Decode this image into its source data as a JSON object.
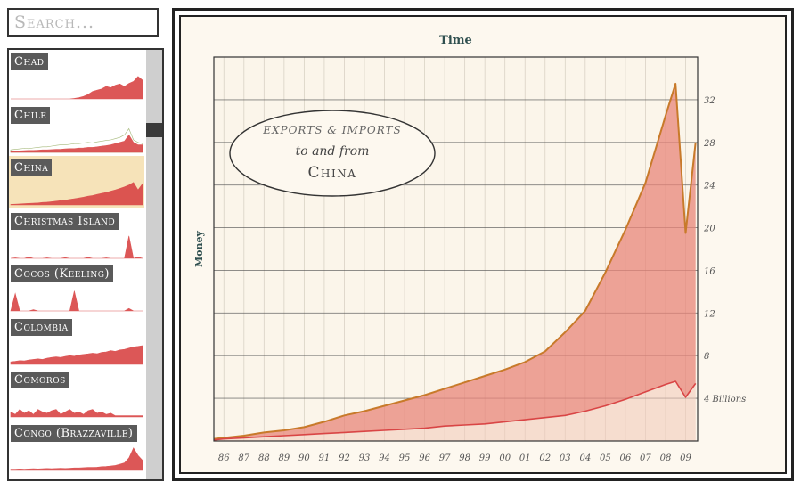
{
  "search": {
    "placeholder": "Search..."
  },
  "sidebar": {
    "items": [
      {
        "label": "Chad",
        "selected": false,
        "spark": [
          0,
          0,
          0,
          0,
          0,
          0,
          0,
          0,
          0,
          0,
          0,
          0,
          0,
          0,
          0.02,
          0.05,
          0.1,
          0.18,
          0.3,
          0.35,
          0.4,
          0.5,
          0.45,
          0.55,
          0.6,
          0.5,
          0.62,
          0.7,
          0.9,
          0.75
        ],
        "spark2": []
      },
      {
        "label": "Chile",
        "selected": false,
        "spark": [
          0.05,
          0.05,
          0.06,
          0.07,
          0.08,
          0.08,
          0.09,
          0.1,
          0.1,
          0.11,
          0.12,
          0.12,
          0.14,
          0.15,
          0.15,
          0.17,
          0.18,
          0.2,
          0.2,
          0.22,
          0.25,
          0.27,
          0.3,
          0.35,
          0.4,
          0.45,
          0.7,
          0.4,
          0.3,
          0.3
        ],
        "spark2": [
          0.1,
          0.12,
          0.14,
          0.16,
          0.15,
          0.18,
          0.2,
          0.22,
          0.22,
          0.25,
          0.28,
          0.3,
          0.3,
          0.32,
          0.35,
          0.35,
          0.38,
          0.4,
          0.38,
          0.42,
          0.45,
          0.48,
          0.5,
          0.55,
          0.6,
          0.7,
          0.95,
          0.5,
          0.4,
          0.35
        ]
      },
      {
        "label": "China",
        "selected": true,
        "spark": [
          0.02,
          0.03,
          0.04,
          0.05,
          0.06,
          0.07,
          0.08,
          0.1,
          0.11,
          0.13,
          0.15,
          0.17,
          0.19,
          0.22,
          0.25,
          0.28,
          0.31,
          0.35,
          0.38,
          0.42,
          0.46,
          0.5,
          0.55,
          0.6,
          0.66,
          0.72,
          0.8,
          0.9,
          0.6,
          0.85
        ],
        "spark2": []
      },
      {
        "label": "Christmas Island",
        "selected": false,
        "spark": [
          0,
          0.02,
          0,
          0,
          0.05,
          0,
          0,
          0,
          0.02,
          0,
          0,
          0,
          0.03,
          0,
          0,
          0,
          0,
          0.04,
          0,
          0,
          0,
          0.02,
          0,
          0,
          0,
          0,
          0.9,
          0,
          0.05,
          0
        ],
        "spark2": []
      },
      {
        "label": "Cocos (Keeling)",
        "selected": false,
        "spark": [
          0,
          0.7,
          0,
          0,
          0,
          0.05,
          0,
          0,
          0,
          0,
          0,
          0,
          0,
          0,
          0.8,
          0,
          0,
          0,
          0,
          0,
          0,
          0,
          0,
          0,
          0,
          0,
          0.1,
          0,
          0,
          0
        ],
        "spark2": []
      },
      {
        "label": "Colombia",
        "selected": false,
        "spark": [
          0.1,
          0.12,
          0.15,
          0.14,
          0.18,
          0.2,
          0.22,
          0.2,
          0.25,
          0.28,
          0.3,
          0.28,
          0.32,
          0.35,
          0.33,
          0.38,
          0.4,
          0.42,
          0.45,
          0.43,
          0.48,
          0.5,
          0.55,
          0.52,
          0.58,
          0.6,
          0.65,
          0.7,
          0.72,
          0.75
        ],
        "spark2": []
      },
      {
        "label": "Comoros",
        "selected": false,
        "spark": [
          0.2,
          0.1,
          0.3,
          0.15,
          0.25,
          0.1,
          0.3,
          0.2,
          0.15,
          0.25,
          0.3,
          0.1,
          0.2,
          0.3,
          0.15,
          0.2,
          0.1,
          0.25,
          0.3,
          0.15,
          0.2,
          0.1,
          0.15,
          0.05,
          0.05,
          0.05,
          0.05,
          0.05,
          0.05,
          0.05
        ],
        "spark2": []
      },
      {
        "label": "Congo (Brazzaville)",
        "selected": false,
        "spark": [
          0.05,
          0.05,
          0.06,
          0.05,
          0.06,
          0.07,
          0.06,
          0.07,
          0.08,
          0.07,
          0.08,
          0.09,
          0.08,
          0.09,
          0.1,
          0.1,
          0.11,
          0.12,
          0.12,
          0.13,
          0.15,
          0.16,
          0.18,
          0.2,
          0.25,
          0.3,
          0.5,
          0.9,
          0.6,
          0.4
        ],
        "spark2": []
      }
    ]
  },
  "chart_data": {
    "type": "area",
    "title": "Time",
    "xlabel": "Time",
    "ylabel": "Money",
    "legend_title": [
      "Exports & Imports",
      "to and from",
      "China"
    ],
    "y_tick_labels": [
      "4 Billions",
      "8",
      "12",
      "16",
      "20",
      "24",
      "28",
      "32"
    ],
    "x_tick_labels": [
      "86",
      "87",
      "88",
      "89",
      "90",
      "91",
      "92",
      "93",
      "94",
      "95",
      "96",
      "97",
      "98",
      "99",
      "00",
      "01",
      "02",
      "03",
      "04",
      "05",
      "06",
      "07",
      "08",
      "09"
    ],
    "ylim": [
      0,
      36
    ],
    "xlim": [
      1985.5,
      2009.6
    ],
    "series": [
      {
        "name": "Exports",
        "color": "#c87a2a",
        "x": [
          1985.5,
          1986,
          1987,
          1988,
          1989,
          1990,
          1991,
          1992,
          1993,
          1994,
          1995,
          1996,
          1997,
          1998,
          1999,
          2000,
          2001,
          2002,
          2003,
          2004,
          2005,
          2006,
          2007,
          2008,
          2008.5,
          2009,
          2009.5
        ],
        "y": [
          0.2,
          0.3,
          0.5,
          0.8,
          1.0,
          1.3,
          1.8,
          2.4,
          2.8,
          3.3,
          3.8,
          4.3,
          4.9,
          5.5,
          6.1,
          6.7,
          7.4,
          8.4,
          10.2,
          12.2,
          15.8,
          19.8,
          24.2,
          30.5,
          33.5,
          19.5,
          28.0
        ]
      },
      {
        "name": "Imports",
        "color": "#d94545",
        "x": [
          1985.5,
          1986,
          1987,
          1988,
          1989,
          1990,
          1991,
          1992,
          1993,
          1994,
          1995,
          1996,
          1997,
          1998,
          1999,
          2000,
          2001,
          2002,
          2003,
          2004,
          2005,
          2006,
          2007,
          2008,
          2008.5,
          2009,
          2009.5
        ],
        "y": [
          0.1,
          0.2,
          0.3,
          0.4,
          0.5,
          0.6,
          0.7,
          0.8,
          0.9,
          1.0,
          1.1,
          1.2,
          1.4,
          1.5,
          1.6,
          1.8,
          2.0,
          2.2,
          2.4,
          2.8,
          3.3,
          3.9,
          4.6,
          5.3,
          5.6,
          4.1,
          5.4
        ]
      }
    ]
  },
  "colors": {
    "export_line": "#c87a2a",
    "area_fill": "#e8857a",
    "import_line": "#d94545",
    "accent_green": "#9ab06a",
    "background": "#fdf8ef"
  }
}
